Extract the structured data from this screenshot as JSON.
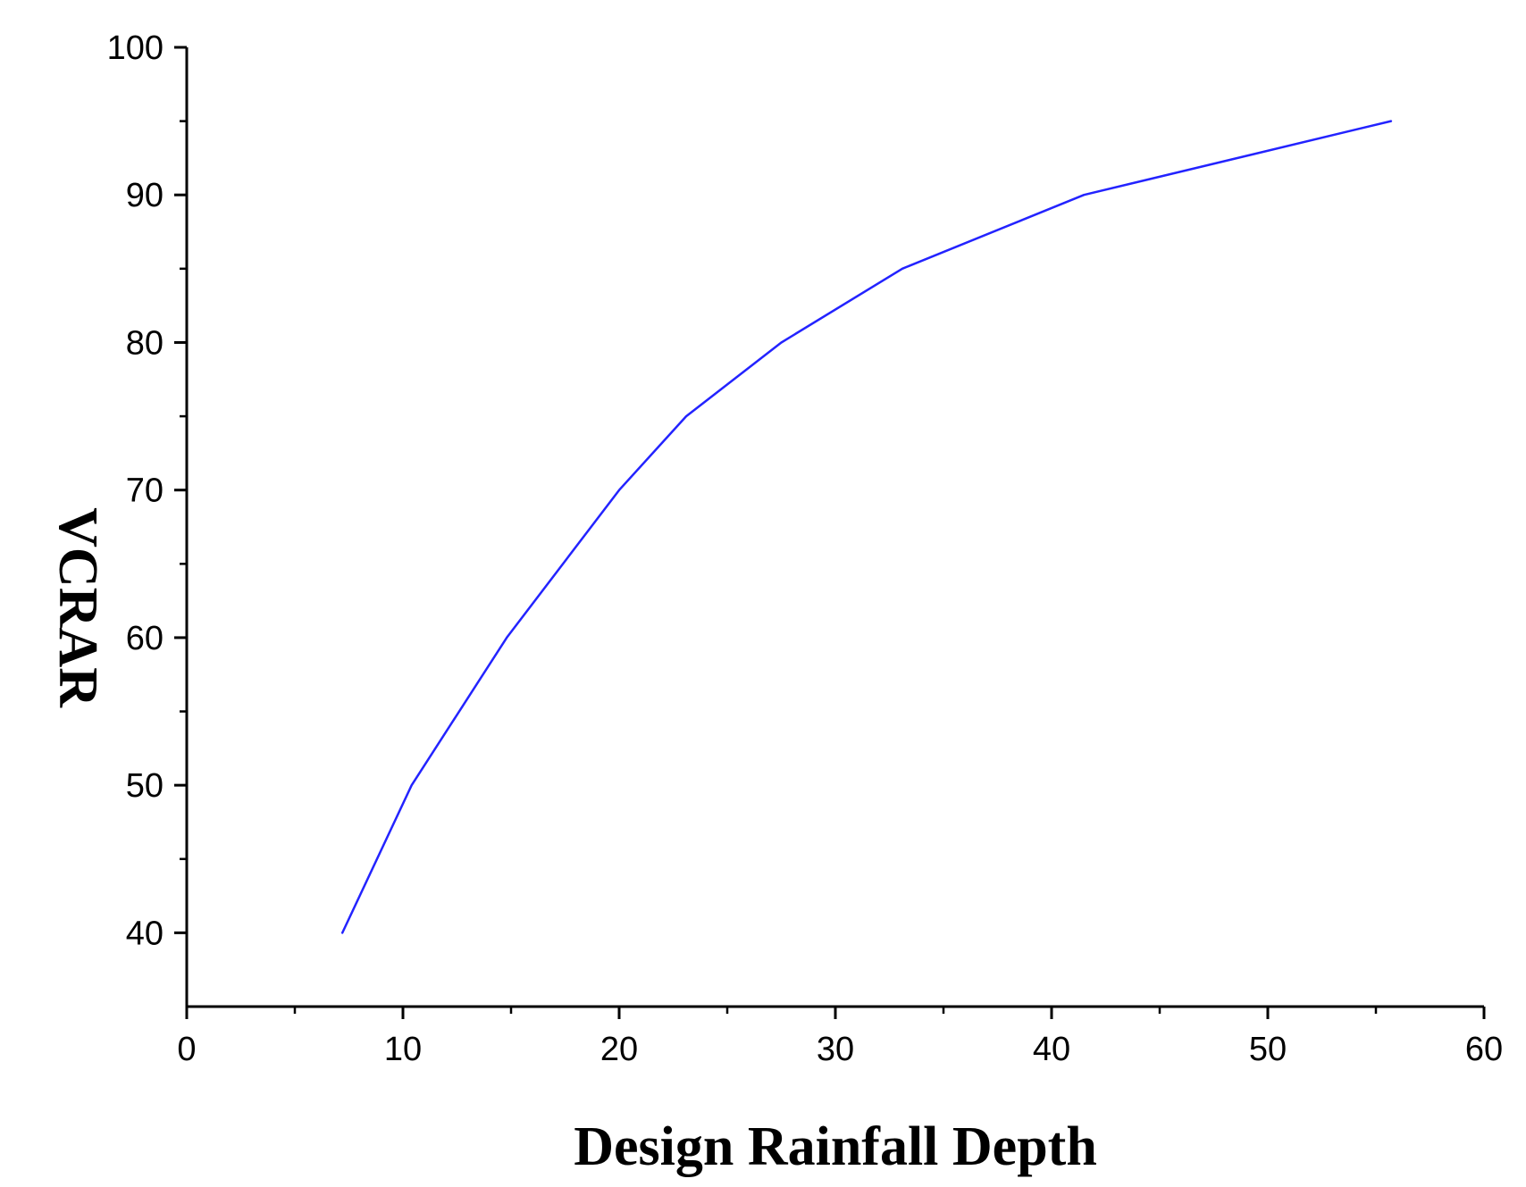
{
  "chart_data": {
    "type": "line",
    "title": "",
    "xlabel": "Design Rainfall Depth",
    "ylabel": "VCRAR",
    "xlim": [
      0,
      60
    ],
    "ylim": [
      35,
      100
    ],
    "x_ticks": [
      0,
      10,
      20,
      30,
      40,
      50,
      60
    ],
    "x_minor_ticks": [
      5,
      15,
      25,
      35,
      45,
      55
    ],
    "y_ticks": [
      40,
      50,
      60,
      70,
      80,
      90,
      100
    ],
    "y_minor_ticks": [
      45,
      55,
      65,
      75,
      85,
      95
    ],
    "grid": false,
    "legend": "none",
    "series": [
      {
        "color": "#2323ff",
        "x": [
          7.2,
          10.4,
          14.8,
          20.0,
          23.1,
          27.5,
          33.1,
          41.5,
          55.7
        ],
        "y": [
          40,
          50,
          60,
          70,
          75,
          80,
          85,
          90,
          95
        ]
      }
    ]
  }
}
